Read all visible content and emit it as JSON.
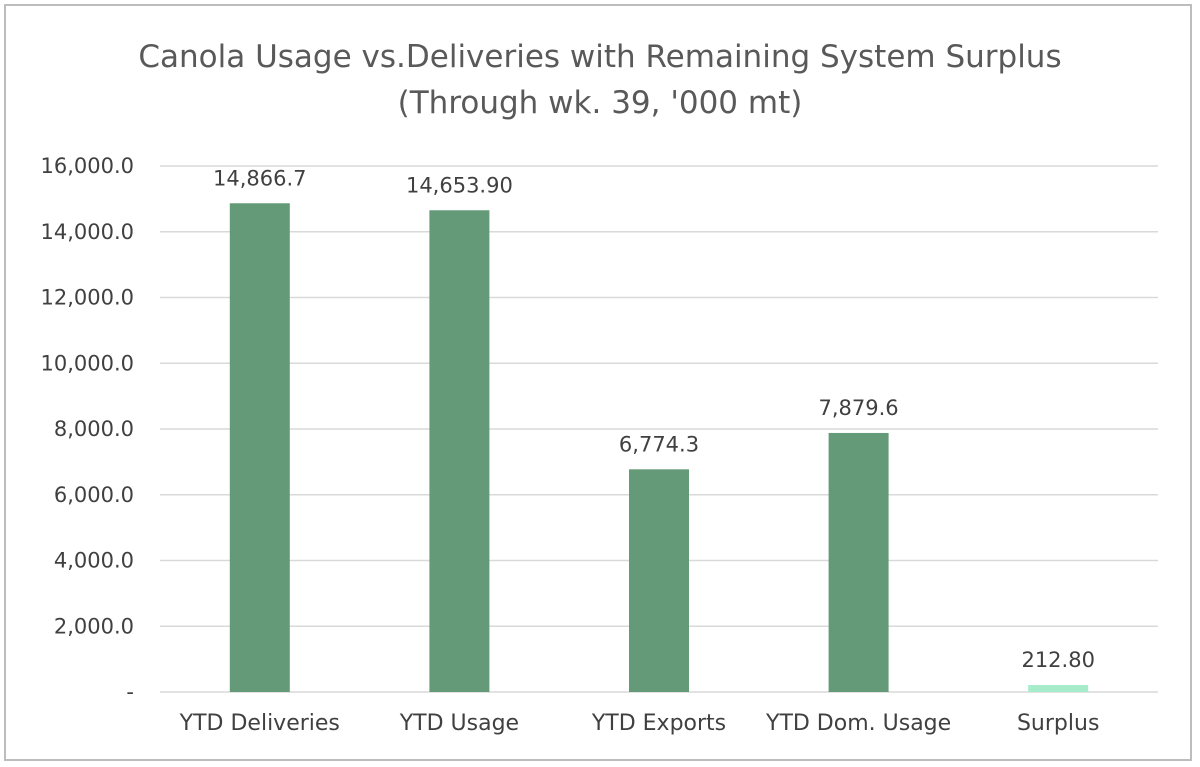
{
  "chart_data": {
    "type": "bar",
    "title": "Canola Usage vs.Deliveries with Remaining System Surplus",
    "subtitle": "(Through wk. 39, '000 mt)",
    "categories": [
      "YTD Deliveries",
      "YTD Usage",
      "YTD Exports",
      "YTD Dom. Usage",
      "Surplus"
    ],
    "values": [
      14866.7,
      14653.9,
      6774.3,
      7879.6,
      212.8
    ],
    "data_labels": [
      "14,866.7",
      "14,653.90",
      "6,774.3",
      "7,879.6",
      "212.80"
    ],
    "bar_colors": [
      "#659a78",
      "#659a78",
      "#659a78",
      "#659a78",
      "#a6ecca"
    ],
    "ylim": [
      0,
      16000
    ],
    "yticks": [
      0,
      2000,
      4000,
      6000,
      8000,
      10000,
      12000,
      14000,
      16000
    ],
    "ytick_labels": [
      "-",
      "2,000.0",
      "4,000.0",
      "6,000.0",
      "8,000.0",
      "10,000.0",
      "12,000.0",
      "14,000.0",
      "16,000.0"
    ],
    "xlabel": "",
    "ylabel": "",
    "grid": true,
    "legend": "none",
    "colors": {
      "grid": "#d9d9d9",
      "text": "#404040",
      "title": "#595959"
    }
  }
}
